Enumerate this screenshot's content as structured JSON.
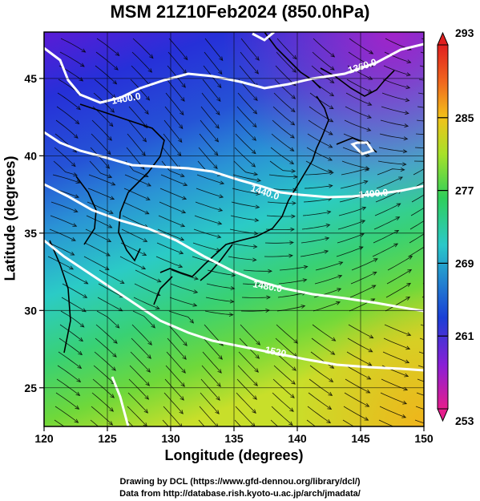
{
  "title": "MSM 21Z10Feb2024 (850.0hPa)",
  "map": {
    "xlabel": "Longitude (degrees)",
    "ylabel": "Latitude  (degrees)",
    "lon_range": [
      120,
      150
    ],
    "lat_range": [
      22.5,
      48
    ],
    "lon_ticks": [
      "120",
      "125",
      "130",
      "135",
      "140",
      "145",
      "150"
    ],
    "lat_ticks": [
      "25",
      "30",
      "35",
      "40",
      "45"
    ],
    "grid": true,
    "contour_labels": [
      "1360.0",
      "1400.0",
      "1440.0",
      "1400.0",
      "1480.0",
      "1520"
    ],
    "streamlines": "wind streamlines with arrowheads",
    "coastline_color": "#000000",
    "contour_color": "#ffffff"
  },
  "colorbar": {
    "range": [
      253,
      293
    ],
    "tick_labels": [
      "293",
      "285",
      "277",
      "269",
      "261",
      "253"
    ],
    "colors": [
      "#e51e8c",
      "#8a1fd6",
      "#1a3fd6",
      "#2ac8c9",
      "#2fcf5a",
      "#a7e12a",
      "#f2c21a",
      "#f0661e",
      "#e01f1f"
    ]
  },
  "credits": {
    "drawing": "Drawing by DCL (https://www.gfd-dennou.org/library/dcl/)",
    "data": "Data from http://database.rish.kyoto-u.ac.jp/arch/jmadata/"
  }
}
